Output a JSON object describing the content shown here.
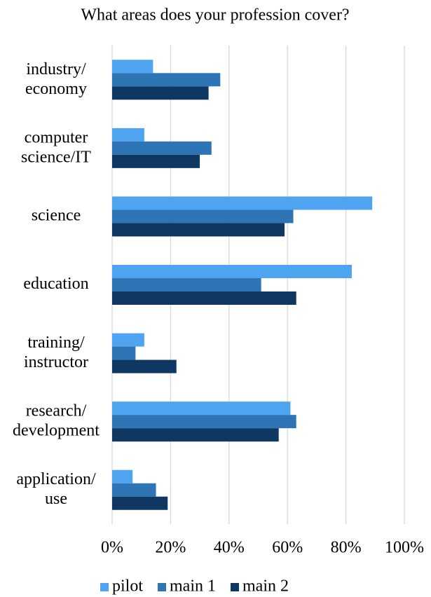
{
  "chart_data": {
    "type": "hbar",
    "title": "What areas does your profession cover?",
    "categories": [
      "industry/\neconomy",
      "computer\nscience/IT",
      "science",
      "education",
      "training/\ninstructor",
      "research/\ndevelopment",
      "application/\nuse"
    ],
    "series": [
      {
        "name": "pilot",
        "color": "#4ea4f0",
        "values": [
          14,
          11,
          89,
          82,
          11,
          61,
          7
        ]
      },
      {
        "name": "main 1",
        "color": "#2e75b6",
        "values": [
          37,
          34,
          62,
          51,
          8,
          63,
          15
        ]
      },
      {
        "name": "main 2",
        "color": "#0e3761",
        "values": [
          33,
          30,
          59,
          63,
          22,
          57,
          19
        ]
      }
    ],
    "xlim": [
      0,
      100
    ],
    "xticks": [
      {
        "value": 0,
        "label": "0%"
      },
      {
        "value": 20,
        "label": "20%"
      },
      {
        "value": 40,
        "label": "40%"
      },
      {
        "value": 60,
        "label": "60%"
      },
      {
        "value": 80,
        "label": "80%"
      },
      {
        "value": 100,
        "label": "100%"
      }
    ],
    "grid": true,
    "legend": "bottom"
  }
}
